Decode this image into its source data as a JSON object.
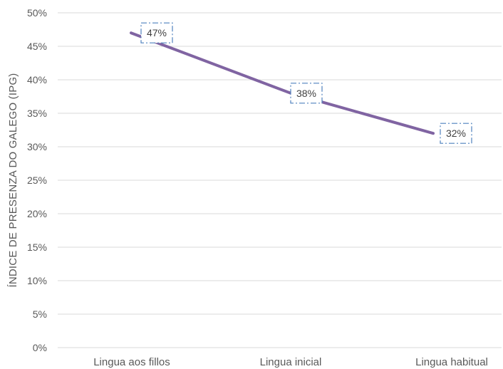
{
  "chart_data": {
    "type": "line",
    "title": "",
    "xlabel": "",
    "ylabel": "ÍNDICE DE PRESENZA DO GALEGO (IPG)",
    "categories": [
      "Lingua aos fillos",
      "Lingua inicial",
      "Lingua habitual"
    ],
    "series": [
      {
        "values": [
          47,
          38,
          32
        ],
        "color": "#8064a2"
      }
    ],
    "data_labels": [
      "47%",
      "38%",
      "32%"
    ],
    "ylim": [
      0,
      50
    ],
    "y_ticks": [
      0,
      5,
      10,
      15,
      20,
      25,
      30,
      35,
      40,
      45,
      50
    ],
    "y_tick_labels": [
      "0%",
      "5%",
      "10%",
      "15%",
      "20%",
      "25%",
      "30%",
      "35%",
      "40%",
      "45%",
      "50%"
    ],
    "grid": true,
    "legend": "none",
    "colors": {
      "grid": "#d9d9d9",
      "text": "#595959",
      "label_box": "#4f81bd"
    }
  }
}
